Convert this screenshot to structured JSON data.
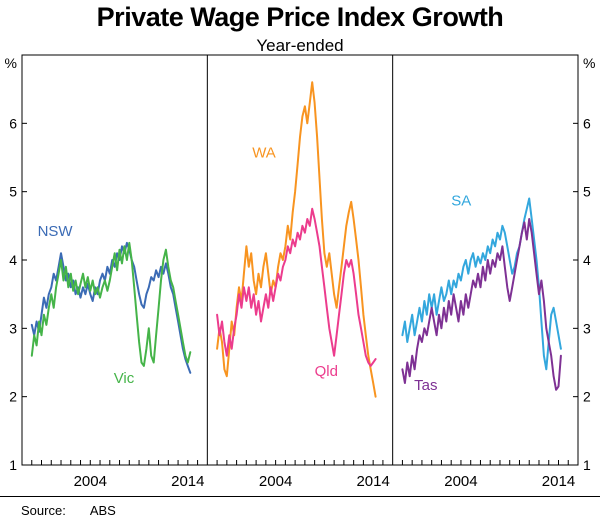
{
  "header": {
    "title": "Private Wage Price Index Growth",
    "subtitle": "Year-ended"
  },
  "footer": {
    "source_label": "Source:",
    "source_value": "ABS"
  },
  "chart_data": {
    "type": "line",
    "title": "Private Wage Price Index Growth",
    "subtitle": "Year-ended",
    "y_unit": "%",
    "ylim": [
      1,
      7
    ],
    "y_ticks": [
      1,
      2,
      3,
      4,
      5,
      6
    ],
    "panel_x_range": [
      1997,
      2016
    ],
    "x_tick_step": 1,
    "x_label_years": [
      2004,
      2014
    ],
    "x_start": 1998.0,
    "x_step": 0.25,
    "legend_position": "inline-labels",
    "grid": false,
    "panels": [
      {
        "name": "nsw-vic",
        "series": [
          {
            "name": "NSW",
            "color": "#3b6bb5",
            "label": {
              "x": 1998.6,
              "y": 4.35,
              "anchor": "start"
            },
            "values": [
              3.05,
              2.9,
              3.1,
              2.95,
              3.2,
              3.45,
              3.3,
              3.5,
              3.6,
              3.8,
              3.7,
              3.9,
              4.1,
              3.9,
              3.7,
              3.8,
              3.6,
              3.7,
              3.5,
              3.6,
              3.45,
              3.6,
              3.5,
              3.65,
              3.5,
              3.4,
              3.6,
              3.5,
              3.7,
              3.8,
              3.7,
              3.9,
              3.8,
              4.0,
              3.9,
              4.1,
              4.0,
              4.2,
              4.1,
              4.25,
              4.15,
              4.0,
              3.9,
              3.7,
              3.5,
              3.35,
              3.3,
              3.5,
              3.6,
              3.75,
              3.7,
              3.85,
              3.75,
              3.9,
              3.8,
              3.95,
              3.8,
              3.6,
              3.5,
              3.3,
              3.1,
              2.9,
              2.7,
              2.55,
              2.45,
              2.35
            ]
          },
          {
            "name": "Vic",
            "color": "#45b449",
            "label": {
              "x": 2006.4,
              "y": 2.2,
              "anchor": "start"
            },
            "values": [
              2.6,
              2.9,
              2.75,
              3.1,
              2.9,
              3.2,
              3.05,
              3.3,
              3.5,
              3.3,
              3.6,
              3.8,
              4.0,
              3.7,
              3.9,
              3.6,
              3.8,
              3.55,
              3.7,
              3.5,
              3.65,
              3.8,
              3.6,
              3.75,
              3.55,
              3.7,
              3.5,
              3.6,
              3.45,
              3.6,
              3.7,
              3.55,
              3.7,
              3.9,
              4.1,
              3.85,
              4.15,
              3.95,
              4.2,
              4.0,
              4.25,
              4.0,
              3.6,
              3.2,
              2.8,
              2.5,
              2.45,
              2.7,
              3.0,
              2.6,
              2.5,
              2.9,
              3.3,
              3.7,
              4.0,
              4.15,
              3.9,
              3.7,
              3.6,
              3.4,
              3.2,
              3.0,
              2.8,
              2.6,
              2.5,
              2.65
            ]
          }
        ]
      },
      {
        "name": "wa-qld",
        "series": [
          {
            "name": "WA",
            "color": "#f89420",
            "label": {
              "x": 2001.6,
              "y": 5.5,
              "anchor": "start"
            },
            "values": [
              2.7,
              3.0,
              2.8,
              2.4,
              2.3,
              2.7,
              3.1,
              2.9,
              3.3,
              3.6,
              3.4,
              3.8,
              4.2,
              3.9,
              4.1,
              3.7,
              3.5,
              3.8,
              3.6,
              3.9,
              4.1,
              3.8,
              3.5,
              3.7,
              3.6,
              3.9,
              4.1,
              4.0,
              4.2,
              4.5,
              4.3,
              4.7,
              5.0,
              5.4,
              5.8,
              6.1,
              6.25,
              6.0,
              6.3,
              6.6,
              6.3,
              5.8,
              5.2,
              4.6,
              4.1,
              3.9,
              4.1,
              3.8,
              3.5,
              3.3,
              3.6,
              3.9,
              4.2,
              4.5,
              4.7,
              4.85,
              4.6,
              4.3,
              4.0,
              3.6,
              3.2,
              2.9,
              2.6,
              2.4,
              2.2,
              2.0
            ]
          },
          {
            "name": "Qld",
            "color": "#ec3c8d",
            "label": {
              "x": 2008.0,
              "y": 2.3,
              "anchor": "start"
            },
            "values": [
              3.2,
              2.9,
              3.1,
              2.8,
              2.6,
              2.9,
              2.7,
              3.0,
              3.2,
              3.5,
              3.3,
              3.6,
              3.4,
              3.6,
              3.3,
              3.5,
              3.2,
              3.4,
              3.1,
              3.3,
              3.5,
              3.3,
              3.6,
              3.4,
              3.6,
              3.8,
              3.7,
              3.9,
              4.0,
              4.2,
              4.1,
              4.3,
              4.2,
              4.4,
              4.3,
              4.5,
              4.4,
              4.6,
              4.5,
              4.75,
              4.6,
              4.4,
              4.2,
              3.9,
              3.6,
              3.3,
              3.0,
              2.8,
              2.6,
              2.9,
              3.2,
              3.5,
              3.8,
              4.0,
              3.9,
              4.0,
              3.8,
              3.5,
              3.2,
              3.0,
              2.8,
              2.6,
              2.5,
              2.45,
              2.5,
              2.55
            ]
          }
        ]
      },
      {
        "name": "sa-tas",
        "series": [
          {
            "name": "SA",
            "color": "#33a7dd",
            "label": {
              "x": 2003.0,
              "y": 4.8,
              "anchor": "start"
            },
            "values": [
              2.9,
              3.1,
              2.8,
              3.0,
              3.2,
              2.9,
              3.1,
              3.3,
              3.1,
              3.4,
              3.2,
              3.5,
              3.3,
              3.5,
              3.2,
              3.4,
              3.6,
              3.4,
              3.5,
              3.7,
              3.5,
              3.7,
              3.6,
              3.8,
              3.7,
              3.9,
              4.0,
              3.8,
              4.0,
              4.1,
              3.9,
              4.05,
              3.95,
              4.1,
              4.0,
              4.2,
              4.1,
              4.3,
              4.2,
              4.4,
              4.3,
              4.5,
              4.4,
              4.2,
              4.0,
              3.8,
              3.9,
              4.1,
              4.2,
              4.4,
              4.6,
              4.75,
              4.9,
              4.6,
              4.3,
              4.0,
              3.6,
              3.1,
              2.6,
              2.4,
              2.8,
              3.2,
              3.3,
              3.1,
              2.9,
              2.7
            ]
          },
          {
            "name": "Tas",
            "color": "#7e3194",
            "label": {
              "x": 1999.2,
              "y": 2.1,
              "anchor": "start"
            },
            "values": [
              2.4,
              2.2,
              2.5,
              2.3,
              2.6,
              2.4,
              2.7,
              2.9,
              2.8,
              3.0,
              2.9,
              3.1,
              3.3,
              3.1,
              2.9,
              3.2,
              3.0,
              3.3,
              3.1,
              3.4,
              3.2,
              3.5,
              3.3,
              3.1,
              3.4,
              3.2,
              3.5,
              3.3,
              3.5,
              3.7,
              3.6,
              3.8,
              3.6,
              3.9,
              3.7,
              4.0,
              3.8,
              4.0,
              3.9,
              4.1,
              4.0,
              4.2,
              3.9,
              3.6,
              3.4,
              3.6,
              3.8,
              4.0,
              4.2,
              4.4,
              4.55,
              4.3,
              4.6,
              4.4,
              4.1,
              3.8,
              3.5,
              3.7,
              3.4,
              3.0,
              2.8,
              2.6,
              2.3,
              2.1,
              2.15,
              2.6
            ]
          }
        ]
      }
    ]
  }
}
